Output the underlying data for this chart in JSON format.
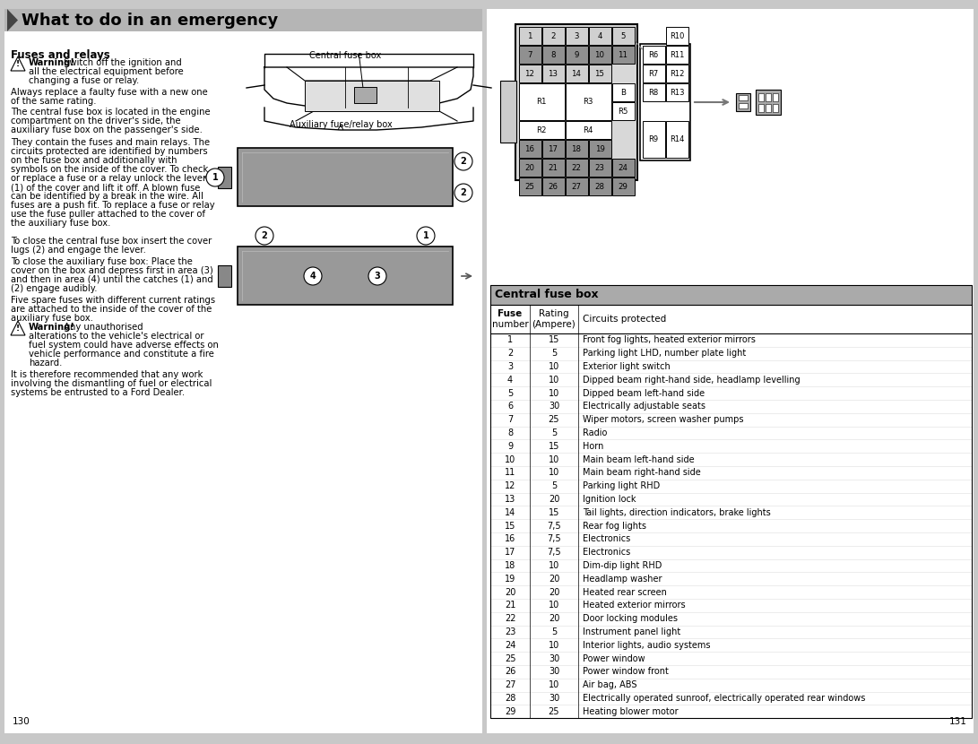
{
  "title": "What to do in an emergency",
  "page_bg": "#c8c8c8",
  "table_header": "Central fuse box",
  "table_cols": [
    "Fuse\nnumber",
    "Rating\n(Ampere)",
    "Circuits protected"
  ],
  "table_data": [
    [
      "1",
      "15",
      "Front fog lights, heated exterior mirrors"
    ],
    [
      "2",
      "5",
      "Parking light LHD, number plate light"
    ],
    [
      "3",
      "10",
      "Exterior light switch"
    ],
    [
      "4",
      "10",
      "Dipped beam right-hand side, headlamp levelling"
    ],
    [
      "5",
      "10",
      "Dipped beam left-hand side"
    ],
    [
      "6",
      "30",
      "Electrically adjustable seats"
    ],
    [
      "7",
      "25",
      "Wiper motors, screen washer pumps"
    ],
    [
      "8",
      "5",
      "Radio"
    ],
    [
      "9",
      "15",
      "Horn"
    ],
    [
      "10",
      "10",
      "Main beam left-hand side"
    ],
    [
      "11",
      "10",
      "Main beam right-hand side"
    ],
    [
      "12",
      "5",
      "Parking light RHD"
    ],
    [
      "13",
      "20",
      "Ignition lock"
    ],
    [
      "14",
      "15",
      "Tail lights, direction indicators, brake lights"
    ],
    [
      "15",
      "7,5",
      "Rear fog lights"
    ],
    [
      "16",
      "7,5",
      "Electronics"
    ],
    [
      "17",
      "7,5",
      "Electronics"
    ],
    [
      "18",
      "10",
      "Dim-dip light RHD"
    ],
    [
      "19",
      "20",
      "Headlamp washer"
    ],
    [
      "20",
      "20",
      "Heated rear screen"
    ],
    [
      "21",
      "10",
      "Heated exterior mirrors"
    ],
    [
      "22",
      "20",
      "Door locking modules"
    ],
    [
      "23",
      "5",
      "Instrument panel light"
    ],
    [
      "24",
      "10",
      "Interior lights, audio systems"
    ],
    [
      "25",
      "30",
      "Power window"
    ],
    [
      "26",
      "30",
      "Power window front"
    ],
    [
      "27",
      "10",
      "Air bag, ABS"
    ],
    [
      "28",
      "30",
      "Electrically operated sunroof, electrically operated rear windows"
    ],
    [
      "29",
      "25",
      "Heating blower motor"
    ]
  ],
  "page_num_left": "130",
  "page_num_right": "131",
  "gray_dark": "#909090",
  "gray_light": "#c8c8c8",
  "gray_medium": "#b0b0b0",
  "white": "#ffffff",
  "box_bg": "#b8b8b8"
}
